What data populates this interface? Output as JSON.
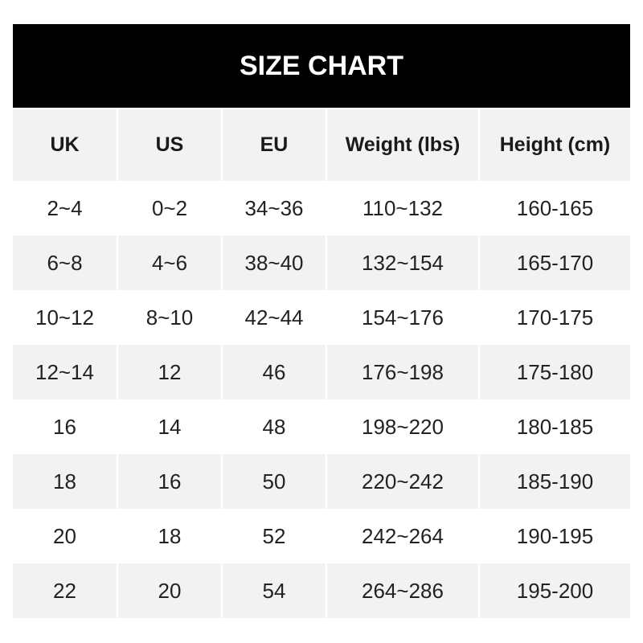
{
  "title": "SIZE CHART",
  "headers": [
    "UK",
    "US",
    "EU",
    "Weight (lbs)",
    "Height (cm)"
  ],
  "rows": [
    [
      "2~4",
      "0~2",
      "34~36",
      "110~132",
      "160-165"
    ],
    [
      "6~8",
      "4~6",
      "38~40",
      "132~154",
      "165-170"
    ],
    [
      "10~12",
      "8~10",
      "42~44",
      "154~176",
      "170-175"
    ],
    [
      "12~14",
      "12",
      "46",
      "176~198",
      "175-180"
    ],
    [
      "16",
      "14",
      "48",
      "198~220",
      "180-185"
    ],
    [
      "18",
      "16",
      "50",
      "220~242",
      "185-190"
    ],
    [
      "20",
      "18",
      "52",
      "242~264",
      "190-195"
    ],
    [
      "22",
      "20",
      "54",
      "264~286",
      "195-200"
    ]
  ]
}
